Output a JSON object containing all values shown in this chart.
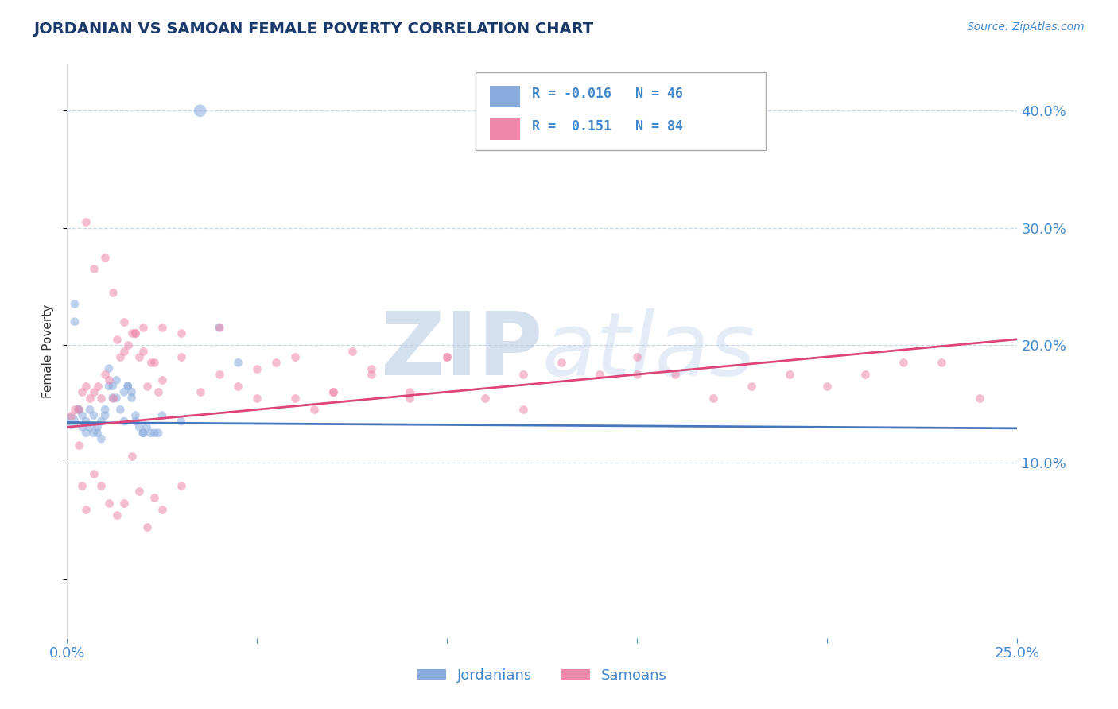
{
  "title": "JORDANIAN VS SAMOAN FEMALE POVERTY CORRELATION CHART",
  "source_text": "Source: ZipAtlas.com",
  "ylabel": "Female Poverty",
  "xlim": [
    0.0,
    0.25
  ],
  "ylim": [
    -0.05,
    0.44
  ],
  "xticks": [
    0.0,
    0.05,
    0.1,
    0.15,
    0.2,
    0.25
  ],
  "xtick_labels": [
    "0.0%",
    "",
    "",
    "",
    "",
    "25.0%"
  ],
  "yticks": [
    0.1,
    0.2,
    0.3,
    0.4
  ],
  "ytick_labels": [
    "10.0%",
    "20.0%",
    "30.0%",
    "40.0%"
  ],
  "background_color": "#ffffff",
  "grid_color": "#c8d8e8",
  "title_color": "#1a3a6b",
  "axis_color": "#4488cc",
  "watermark": "ZIPatlas",
  "watermark_color": "#d0dff0",
  "legend_R1": "R = -0.016",
  "legend_N1": "N = 46",
  "legend_R2": "R =  0.151",
  "legend_N2": "N = 84",
  "color_jordanian": "#88aadd",
  "color_samoan": "#ee88aa",
  "trend_color_jordanian": "#4477bb",
  "trend_color_samoan": "#dd4477",
  "jordanian_x": [
    0.001,
    0.002,
    0.002,
    0.003,
    0.003,
    0.004,
    0.004,
    0.005,
    0.005,
    0.006,
    0.006,
    0.007,
    0.007,
    0.008,
    0.008,
    0.009,
    0.009,
    0.01,
    0.01,
    0.011,
    0.011,
    0.012,
    0.012,
    0.013,
    0.013,
    0.014,
    0.015,
    0.015,
    0.016,
    0.016,
    0.017,
    0.017,
    0.018,
    0.018,
    0.019,
    0.02,
    0.02,
    0.021,
    0.022,
    0.023,
    0.024,
    0.025,
    0.03,
    0.035,
    0.04,
    0.045
  ],
  "jordanian_y": [
    0.135,
    0.22,
    0.235,
    0.145,
    0.145,
    0.13,
    0.14,
    0.125,
    0.135,
    0.13,
    0.145,
    0.125,
    0.14,
    0.13,
    0.125,
    0.12,
    0.135,
    0.145,
    0.14,
    0.165,
    0.18,
    0.165,
    0.155,
    0.17,
    0.155,
    0.145,
    0.135,
    0.16,
    0.165,
    0.165,
    0.16,
    0.155,
    0.14,
    0.135,
    0.13,
    0.125,
    0.125,
    0.13,
    0.125,
    0.125,
    0.125,
    0.14,
    0.135,
    0.4,
    0.215,
    0.185
  ],
  "jordanian_large_idx": [
    0,
    43
  ],
  "samoan_x": [
    0.001,
    0.002,
    0.003,
    0.004,
    0.005,
    0.006,
    0.007,
    0.008,
    0.009,
    0.01,
    0.011,
    0.012,
    0.013,
    0.014,
    0.015,
    0.016,
    0.017,
    0.018,
    0.019,
    0.02,
    0.021,
    0.022,
    0.023,
    0.024,
    0.025,
    0.03,
    0.035,
    0.04,
    0.045,
    0.05,
    0.055,
    0.06,
    0.065,
    0.07,
    0.075,
    0.08,
    0.09,
    0.1,
    0.11,
    0.12,
    0.13,
    0.14,
    0.15,
    0.16,
    0.17,
    0.18,
    0.19,
    0.2,
    0.21,
    0.22,
    0.23,
    0.24,
    0.003,
    0.004,
    0.005,
    0.007,
    0.009,
    0.011,
    0.013,
    0.015,
    0.017,
    0.019,
    0.021,
    0.023,
    0.025,
    0.03,
    0.005,
    0.007,
    0.01,
    0.012,
    0.015,
    0.018,
    0.02,
    0.025,
    0.03,
    0.04,
    0.06,
    0.08,
    0.1,
    0.15,
    0.05,
    0.07,
    0.09,
    0.12
  ],
  "samoan_y": [
    0.14,
    0.145,
    0.145,
    0.16,
    0.165,
    0.155,
    0.16,
    0.165,
    0.155,
    0.175,
    0.17,
    0.155,
    0.205,
    0.19,
    0.195,
    0.2,
    0.21,
    0.21,
    0.19,
    0.195,
    0.165,
    0.185,
    0.185,
    0.16,
    0.17,
    0.21,
    0.16,
    0.175,
    0.165,
    0.155,
    0.185,
    0.155,
    0.145,
    0.16,
    0.195,
    0.18,
    0.155,
    0.19,
    0.155,
    0.145,
    0.185,
    0.175,
    0.175,
    0.175,
    0.155,
    0.165,
    0.175,
    0.165,
    0.175,
    0.185,
    0.185,
    0.155,
    0.115,
    0.08,
    0.06,
    0.09,
    0.08,
    0.065,
    0.055,
    0.065,
    0.105,
    0.075,
    0.045,
    0.07,
    0.06,
    0.08,
    0.305,
    0.265,
    0.275,
    0.245,
    0.22,
    0.21,
    0.215,
    0.215,
    0.19,
    0.215,
    0.19,
    0.175,
    0.19,
    0.19,
    0.18,
    0.16,
    0.16,
    0.175
  ]
}
